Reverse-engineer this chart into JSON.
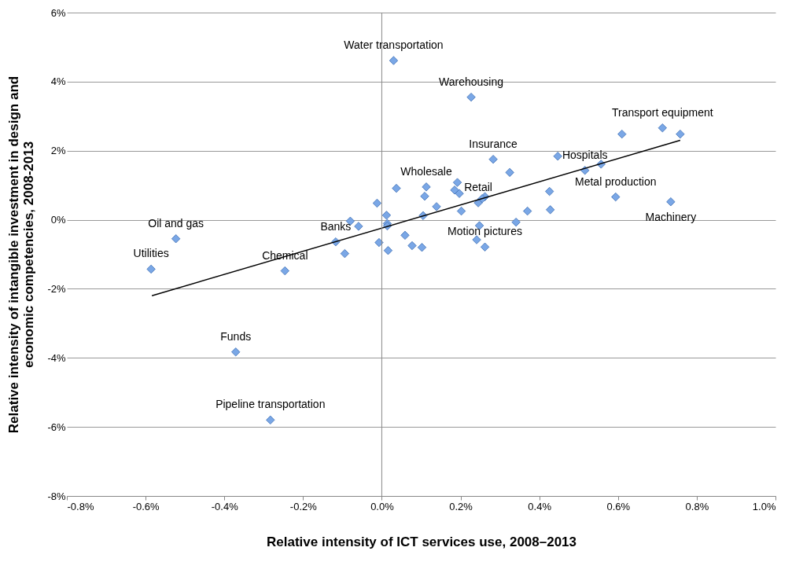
{
  "chart_data": {
    "type": "scatter",
    "xlabel": "Relative intensity of ICT services use, 2008–2013",
    "ylabel": "Relative intensity of intangible investment in design and\neconomic competencies, 2008-2013",
    "xlim": [
      -0.8,
      1.0
    ],
    "ylim": [
      -8,
      6
    ],
    "xticks": [
      {
        "value": -0.8,
        "label": "-0.8%"
      },
      {
        "value": -0.6,
        "label": "-0.6%"
      },
      {
        "value": -0.4,
        "label": "-0.4%"
      },
      {
        "value": -0.2,
        "label": "-0.2%"
      },
      {
        "value": 0,
        "label": "0.0%"
      },
      {
        "value": 0.2,
        "label": "0.2%"
      },
      {
        "value": 0.4,
        "label": "0.4%"
      },
      {
        "value": 0.6,
        "label": "0.6%"
      },
      {
        "value": 0.8,
        "label": "0.8%"
      },
      {
        "value": 1.0,
        "label": "1.0%"
      }
    ],
    "yticks": [
      {
        "value": -8,
        "label": "-8%"
      },
      {
        "value": -6,
        "label": "-6%"
      },
      {
        "value": -4,
        "label": "-4%"
      },
      {
        "value": -2,
        "label": "-2%"
      },
      {
        "value": 0,
        "label": "0%"
      },
      {
        "value": 2,
        "label": "2%"
      },
      {
        "value": 4,
        "label": "4%"
      },
      {
        "value": 6,
        "label": "6%"
      }
    ],
    "grid": "y",
    "ref_lines": [
      {
        "axis": "x",
        "value": 0,
        "color": "#888888"
      }
    ],
    "series": [
      {
        "type": "scatter",
        "color": "#7aa7e6",
        "marker": "diamond",
        "x": [
          0.03,
          0.227,
          0.61,
          0.713,
          0.758,
          0.283,
          0.447,
          0.516,
          0.557,
          0.594,
          0.734,
          0.325,
          0.426,
          0.428,
          0.37,
          0.341,
          0.248,
          0.241,
          0.262,
          0.262,
          0.255,
          0.245,
          0.202,
          0.192,
          0.185,
          0.197,
          0.139,
          0.113,
          0.109,
          0.105,
          0.037,
          -0.012,
          0.012,
          0.014,
          0.014,
          -0.007,
          0.016,
          0.059,
          0.077,
          0.102,
          -0.08,
          -0.059,
          -0.117,
          -0.094,
          -0.246,
          -0.523,
          -0.586,
          -0.371,
          -0.283
        ],
        "values": [
          4.61,
          3.55,
          2.48,
          2.66,
          2.48,
          1.75,
          1.84,
          1.43,
          1.61,
          0.66,
          0.52,
          1.37,
          0.82,
          0.29,
          0.25,
          -0.07,
          -0.17,
          -0.58,
          -0.79,
          0.67,
          0.61,
          0.49,
          0.25,
          1.08,
          0.86,
          0.76,
          0.38,
          0.95,
          0.68,
          0.12,
          0.91,
          0.48,
          0.13,
          -0.11,
          -0.18,
          -0.66,
          -0.89,
          -0.45,
          -0.75,
          -0.8,
          -0.04,
          -0.19,
          -0.64,
          -0.98,
          -1.48,
          -0.55,
          -1.43,
          -3.83,
          -5.8
        ]
      },
      {
        "type": "line",
        "color": "#000000",
        "marker": "none",
        "line_style": "solid",
        "x": [
          -0.584,
          0.758
        ],
        "values": [
          -2.2,
          2.3
        ]
      }
    ],
    "annotations": [
      {
        "text": "Water transportation",
        "x": 0.03,
        "y": 4.61
      },
      {
        "text": "Warehousing",
        "x": 0.227,
        "y": 3.55
      },
      {
        "text": "Transport equipment",
        "x": 0.713,
        "y": 2.66
      },
      {
        "text": "Insurance",
        "x": 0.283,
        "y": 1.75
      },
      {
        "text": "Hospitals",
        "x": 0.516,
        "y": 1.43
      },
      {
        "text": "Metal production",
        "x": 0.594,
        "y": 0.66
      },
      {
        "text": "Machinery",
        "x": 0.734,
        "y": 0.52
      },
      {
        "text": "Wholesale",
        "x": 0.113,
        "y": 0.95
      },
      {
        "text": "Retail",
        "x": 0.245,
        "y": 0.49
      },
      {
        "text": "Motion pictures",
        "x": 0.262,
        "y": -0.79
      },
      {
        "text": "Banks",
        "x": -0.117,
        "y": -0.64
      },
      {
        "text": "Chemical",
        "x": -0.246,
        "y": -1.48
      },
      {
        "text": "Oil and gas",
        "x": -0.523,
        "y": -0.55
      },
      {
        "text": "Utilities",
        "x": -0.586,
        "y": -1.43
      },
      {
        "text": "Funds",
        "x": -0.371,
        "y": -3.83
      },
      {
        "text": "Pipeline transportation",
        "x": -0.283,
        "y": -5.8
      }
    ]
  }
}
